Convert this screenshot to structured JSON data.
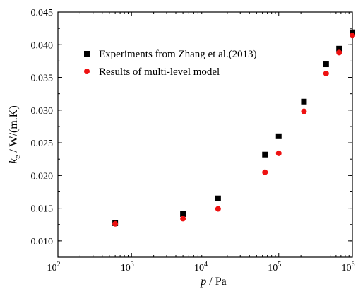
{
  "chart_data": {
    "type": "scatter",
    "xscale": "log",
    "xlim": [
      100,
      1000000
    ],
    "ylim": [
      0.0075,
      0.045
    ],
    "xlabel": {
      "italic": "p",
      "unit": " / Pa"
    },
    "ylabel": {
      "symbol": "k",
      "subscript": "e",
      "unit": " / W/(m.K)"
    },
    "xticks": [
      {
        "base": "10",
        "exp": "2",
        "value": 100
      },
      {
        "base": "10",
        "exp": "3",
        "value": 1000
      },
      {
        "base": "10",
        "exp": "4",
        "value": 10000
      },
      {
        "base": "10",
        "exp": "5",
        "value": 100000
      },
      {
        "base": "10",
        "exp": "6",
        "value": 1000000
      }
    ],
    "yticks": [
      "0.010",
      "0.015",
      "0.020",
      "0.025",
      "0.030",
      "0.035",
      "0.040",
      "0.045"
    ],
    "legend_position": "upper-left",
    "grid": false,
    "series": [
      {
        "name": "Experiments from Zhang et al.(2013)",
        "marker": "square",
        "color": "#000000",
        "points": [
          {
            "x": 600,
            "y": 0.0127
          },
          {
            "x": 5000,
            "y": 0.0141
          },
          {
            "x": 15000,
            "y": 0.0165
          },
          {
            "x": 65000,
            "y": 0.0232
          },
          {
            "x": 100000,
            "y": 0.026
          },
          {
            "x": 220000,
            "y": 0.0313
          },
          {
            "x": 440000,
            "y": 0.037
          },
          {
            "x": 660000,
            "y": 0.0394
          },
          {
            "x": 1000000,
            "y": 0.0419
          }
        ]
      },
      {
        "name": "Results of multi-level model",
        "marker": "circle",
        "color": "#ee1111",
        "points": [
          {
            "x": 600,
            "y": 0.0126
          },
          {
            "x": 5000,
            "y": 0.0134
          },
          {
            "x": 15000,
            "y": 0.0149
          },
          {
            "x": 65000,
            "y": 0.0205
          },
          {
            "x": 100000,
            "y": 0.0234
          },
          {
            "x": 220000,
            "y": 0.0298
          },
          {
            "x": 440000,
            "y": 0.0356
          },
          {
            "x": 660000,
            "y": 0.0388
          },
          {
            "x": 1000000,
            "y": 0.0414
          }
        ]
      }
    ]
  }
}
